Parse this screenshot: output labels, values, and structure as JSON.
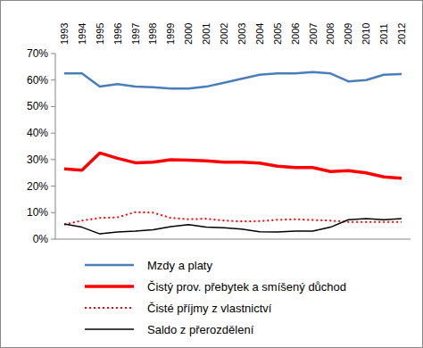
{
  "chart_data": {
    "type": "line",
    "categories": [
      "1993",
      "1994",
      "1995",
      "1996",
      "1997",
      "1998",
      "1999",
      "2000",
      "2001",
      "2002",
      "2003",
      "2004",
      "2005",
      "2006",
      "2007",
      "2008",
      "2009",
      "2010",
      "2011",
      "2012"
    ],
    "series": [
      {
        "name": "Mzdy a platy",
        "color": "#4a7ebb",
        "line_style": "solid",
        "values": [
          62.5,
          62.5,
          57.5,
          58.5,
          57.5,
          57.3,
          56.8,
          56.8,
          57.5,
          59,
          60.5,
          62,
          62.5,
          62.5,
          63,
          62.5,
          59.5,
          60,
          62,
          62.3
        ]
      },
      {
        "name": "Čistý prov. přebytek a smíšený důchod",
        "color": "#ff0000",
        "line_style": "solid",
        "values": [
          26.5,
          26,
          32.5,
          30.5,
          28.8,
          29,
          30,
          29.8,
          29.5,
          29,
          29,
          28.7,
          27.5,
          27,
          27,
          25.5,
          25.8,
          25,
          23.5,
          23
        ]
      },
      {
        "name": "Čisté příjmy z vlastnictví",
        "color": "#ff0000",
        "line_style": "dotted",
        "values": [
          5.5,
          7,
          8,
          8.2,
          10.2,
          10,
          8,
          7.5,
          7.7,
          7,
          6.7,
          6.8,
          7.3,
          7.5,
          7.2,
          7,
          6.5,
          6.5,
          6.5,
          6.5
        ]
      },
      {
        "name": "Saldo z přerozdělení",
        "color": "#000000",
        "line_style": "solid",
        "values": [
          5.7,
          4.5,
          2,
          2.7,
          3,
          3.5,
          4.7,
          5.5,
          4.5,
          4.3,
          3.8,
          2.8,
          2.7,
          3,
          3,
          4.5,
          7.3,
          7.7,
          7.3,
          7.7
        ]
      }
    ],
    "ylim": [
      0,
      70
    ],
    "yticks": [
      {
        "value": 0,
        "label": "0%"
      },
      {
        "value": 10,
        "label": "10%"
      },
      {
        "value": 20,
        "label": "20%"
      },
      {
        "value": 30,
        "label": "30%"
      },
      {
        "value": 40,
        "label": "40%"
      },
      {
        "value": 50,
        "label": "50%"
      },
      {
        "value": 60,
        "label": "60%"
      },
      {
        "value": 70,
        "label": "70%"
      }
    ],
    "grid": false
  }
}
